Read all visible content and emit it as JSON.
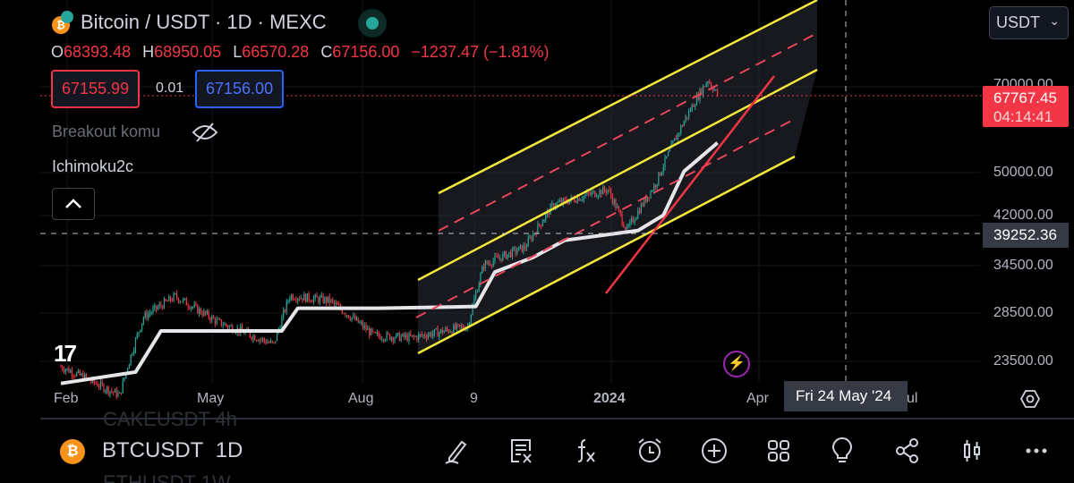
{
  "header": {
    "title": "Bitcoin / USDT · 1D · MEXC",
    "ohlc": [
      {
        "k": "O",
        "v": "68393.48"
      },
      {
        "k": "H",
        "v": "68950.05"
      },
      {
        "k": "L",
        "v": "66570.28"
      },
      {
        "k": "C",
        "v": "67156.00"
      }
    ],
    "change": "−1237.47 (−1.81%)"
  },
  "trade": {
    "sell": "67155.99",
    "spread": "0.01",
    "buy": "67156.00"
  },
  "indicators": {
    "breakout": "Breakout komu",
    "ichimoku": "Ichimoku2c"
  },
  "currency": {
    "selected": "USDT"
  },
  "price_axis": {
    "labels": [
      "70000.00",
      "50000.00",
      "42000.00",
      "34500.00",
      "28500.00",
      "23500.00"
    ],
    "last_price": "67767.45",
    "countdown": "04:14:41",
    "crosshair_price": "39252.36"
  },
  "time_axis": {
    "labels": [
      "Feb",
      "May",
      "Aug",
      "9",
      "2024",
      "Apr",
      "ul"
    ],
    "crosshair_date": "Fri 24 May '24"
  },
  "bottom": {
    "ghost_prev": "CAKEUSDT  4h",
    "symbol": "BTCUSDT",
    "interval": "1D",
    "ghost_next": "ETHUSDT  1W"
  },
  "colors": {
    "up": "#26a69a",
    "down": "#f23645",
    "channel": "#f5e83a",
    "trend": "#f23645"
  },
  "chart_data": {
    "type": "candlestick",
    "price_keypoints": [
      [
        "2023-02-01",
        23000
      ],
      [
        "2023-03-10",
        20500
      ],
      [
        "2023-03-25",
        28000
      ],
      [
        "2023-04-14",
        30400
      ],
      [
        "2023-05-10",
        27500
      ],
      [
        "2023-06-15",
        25100
      ],
      [
        "2023-06-25",
        30500
      ],
      [
        "2023-07-20",
        29900
      ],
      [
        "2023-08-17",
        26000
      ],
      [
        "2023-09-10",
        25800
      ],
      [
        "2023-10-15",
        27000
      ],
      [
        "2023-10-25",
        34500
      ],
      [
        "2023-11-20",
        37000
      ],
      [
        "2023-12-08",
        43800
      ],
      [
        "2024-01-11",
        46500
      ],
      [
        "2024-01-23",
        39500
      ],
      [
        "2024-02-10",
        47500
      ],
      [
        "2024-02-28",
        61000
      ],
      [
        "2024-03-14",
        72000
      ],
      [
        "2024-03-20",
        67767
      ]
    ],
    "baseline_keypoints": [
      [
        "2023-02-01",
        21500
      ],
      [
        "2023-03-20",
        22500
      ],
      [
        "2023-04-05",
        26500
      ],
      [
        "2023-06-20",
        26500
      ],
      [
        "2023-06-30",
        29000
      ],
      [
        "2023-08-20",
        29000
      ],
      [
        "2023-10-20",
        29200
      ],
      [
        "2023-11-01",
        33500
      ],
      [
        "2023-11-25",
        35500
      ],
      [
        "2023-12-15",
        38000
      ],
      [
        "2024-01-30",
        39500
      ],
      [
        "2024-02-15",
        42000
      ],
      [
        "2024-02-28",
        50000
      ],
      [
        "2024-03-20",
        56000
      ]
    ]
  }
}
